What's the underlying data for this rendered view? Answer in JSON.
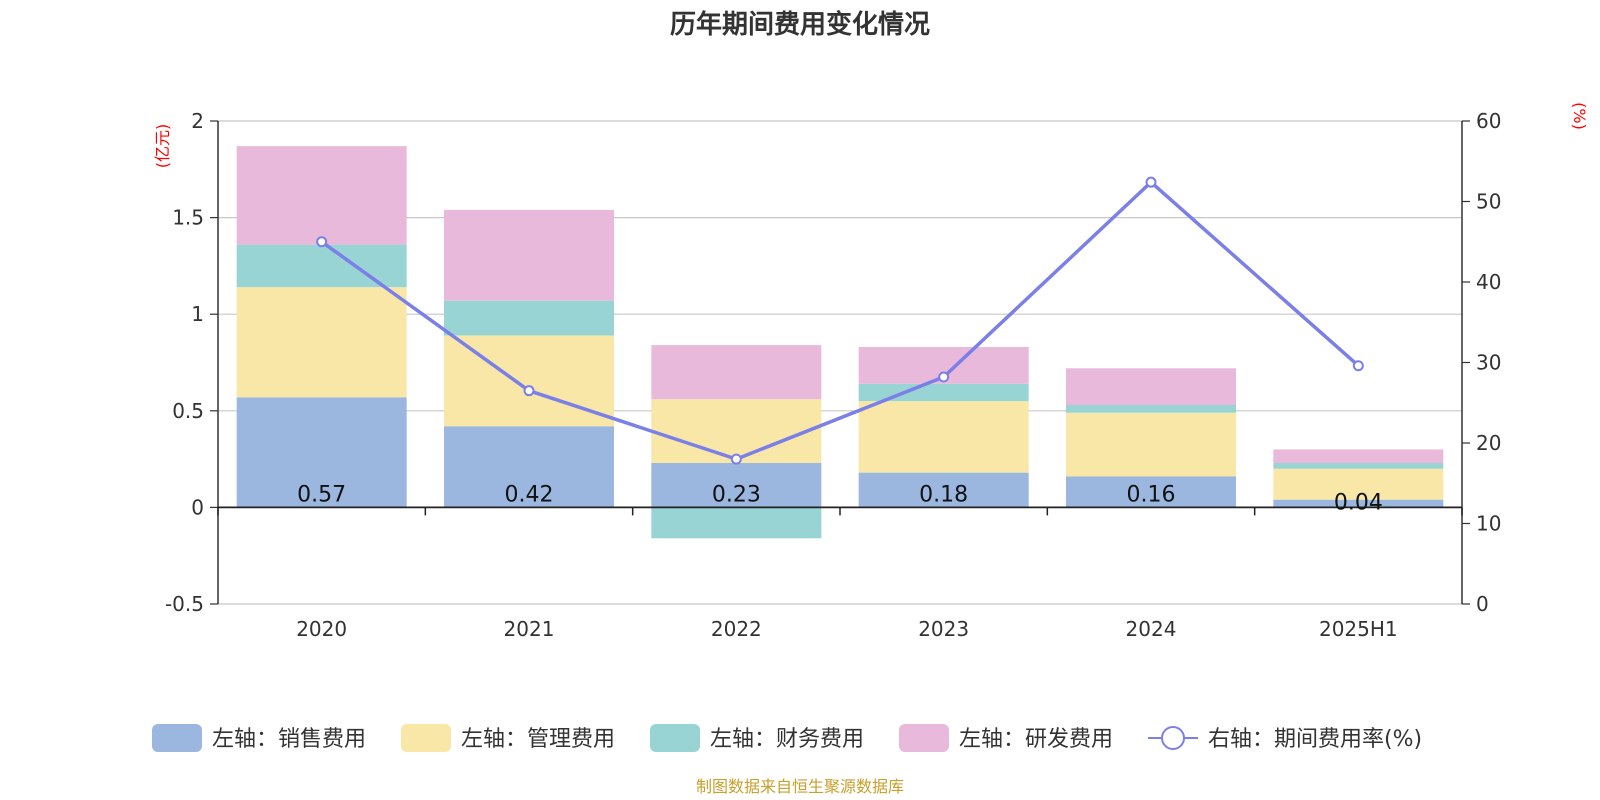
{
  "chart_data": {
    "type": "bar",
    "title": "历年期间费用变化情况",
    "categories": [
      "2020",
      "2021",
      "2022",
      "2023",
      "2024",
      "2025H1"
    ],
    "left_axis": {
      "unit": "(亿元)",
      "ylim": [
        -0.5,
        2
      ],
      "ticks": [
        -0.5,
        0,
        0.5,
        1,
        1.5,
        2
      ],
      "tick_labels": [
        "-0.5",
        "0",
        "0.5",
        "1",
        "1.5",
        "2"
      ]
    },
    "right_axis": {
      "unit": "(%)",
      "ylim": [
        0,
        60
      ],
      "ticks": [
        0,
        10,
        20,
        30,
        40,
        50,
        60
      ],
      "tick_labels": [
        "0",
        "10",
        "20",
        "30",
        "40",
        "50",
        "60"
      ]
    },
    "series": [
      {
        "name": "左轴：销售费用",
        "kind": "stacked-bar",
        "color": "#9bb7e0",
        "values": [
          0.57,
          0.42,
          0.23,
          0.18,
          0.16,
          0.04
        ],
        "data_labels": [
          "0.57",
          "0.42",
          "0.23",
          "0.18",
          "0.16",
          "0.04"
        ]
      },
      {
        "name": "左轴：管理费用",
        "kind": "stacked-bar",
        "color": "#f8e7a6",
        "values": [
          0.57,
          0.47,
          0.33,
          0.37,
          0.33,
          0.16
        ]
      },
      {
        "name": "左轴：财务费用",
        "kind": "stacked-bar",
        "color": "#99d4d5",
        "values": [
          0.22,
          0.18,
          -0.16,
          0.09,
          0.04,
          0.03
        ]
      },
      {
        "name": "左轴：研发费用",
        "kind": "stacked-bar",
        "color": "#e8b9da",
        "values": [
          0.51,
          0.47,
          0.28,
          0.19,
          0.19,
          0.07
        ]
      },
      {
        "name": "右轴：期间费用率(%)",
        "kind": "line",
        "color": "#7b7fe8",
        "values": [
          45.0,
          26.5,
          18.0,
          28.2,
          52.4,
          29.6
        ]
      }
    ],
    "grid": true,
    "legend_position": "bottom-center"
  },
  "source_note": "制图数据来自恒生聚源数据库"
}
